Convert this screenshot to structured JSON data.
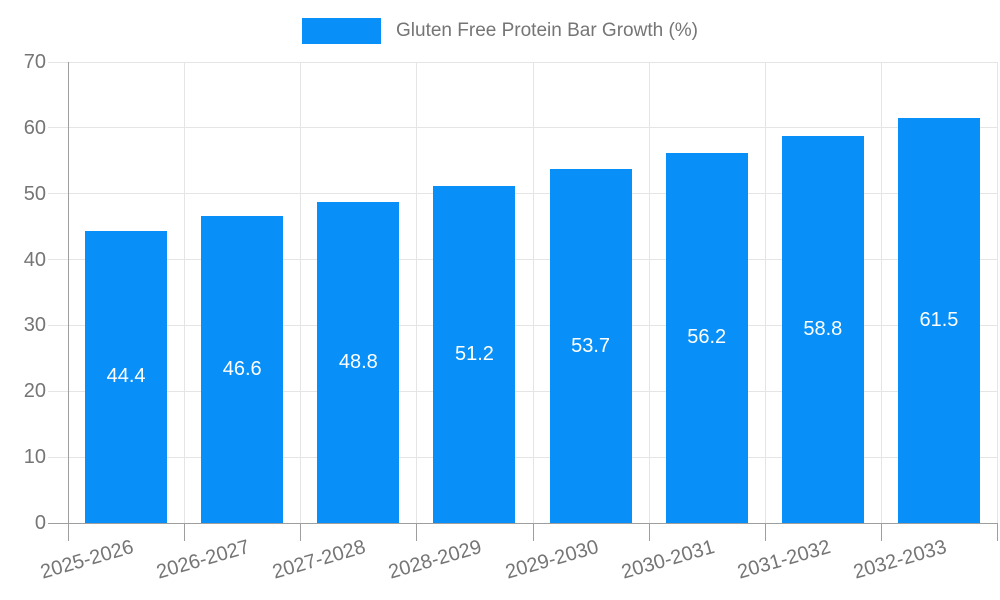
{
  "legend": {
    "label": "Gluten Free Protein Bar Growth (%)",
    "swatch_color": "#0890f8"
  },
  "colors": {
    "bar": "#0890f8",
    "grid": "#e5e5e5",
    "axis": "#9e9e9e",
    "text": "#757575",
    "value_label": "#ffffff",
    "background": "#ffffff"
  },
  "chart_data": {
    "type": "bar",
    "title": "",
    "legend_entries": [
      "Gluten Free Protein Bar Growth (%)"
    ],
    "legend_position": "top-center",
    "categories": [
      "2025-2026",
      "2026-2027",
      "2027-2028",
      "2028-2029",
      "2029-2030",
      "2030-2031",
      "2031-2032",
      "2032-2033"
    ],
    "values": [
      44.4,
      46.6,
      48.8,
      51.2,
      53.7,
      56.2,
      58.8,
      61.5
    ],
    "value_labels": [
      "44.4",
      "46.6",
      "48.8",
      "51.2",
      "53.7",
      "56.2",
      "58.8",
      "61.5"
    ],
    "xlabel": "",
    "ylabel": "",
    "ylim": [
      0,
      70
    ],
    "y_ticks": [
      0,
      10,
      20,
      30,
      40,
      50,
      60,
      70
    ],
    "grid": true,
    "x_tick_label_rotation_deg": -16
  }
}
